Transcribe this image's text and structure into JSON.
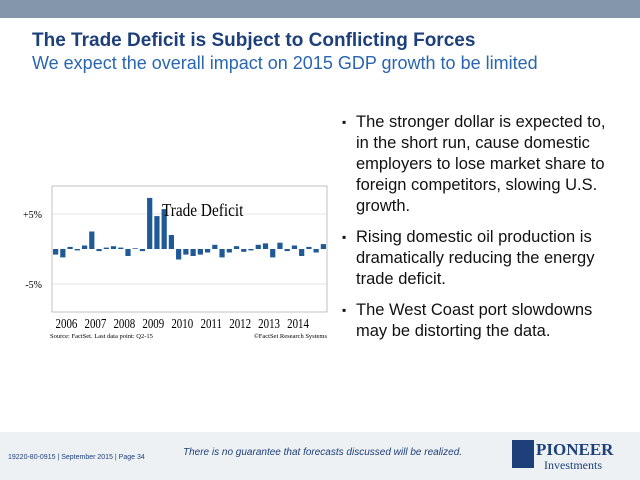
{
  "header": {
    "title": "The Trade Deficit is Subject to Conflicting Forces",
    "subtitle": "We expect the overall impact on 2015 GDP growth to be limited"
  },
  "chart_data": {
    "type": "bar",
    "annotation": "Trade Deficit",
    "color": "#1f5a96",
    "categories": [
      null,
      null,
      null,
      null,
      null,
      null,
      null,
      null,
      null,
      null,
      null,
      null,
      null,
      null,
      null,
      null,
      null,
      null,
      null,
      null,
      null,
      null,
      null,
      null,
      null,
      null,
      null,
      null,
      null,
      null,
      null,
      null,
      null,
      null,
      null,
      null,
      null,
      null
    ],
    "values": [
      -0.8,
      -1.2,
      0.3,
      -0.2,
      0.5,
      2.5,
      -0.3,
      0.2,
      0.4,
      0.2,
      -1.0,
      0.1,
      -0.3,
      7.3,
      4.7,
      5.7,
      2.0,
      -1.5,
      -0.8,
      -1.0,
      -0.8,
      -0.5,
      0.6,
      -1.2,
      -0.5,
      0.4,
      -0.4,
      -0.2,
      0.6,
      0.8,
      -1.2,
      0.9,
      -0.3,
      0.5,
      -1.0,
      0.3,
      -0.5,
      0.7
    ],
    "year_labels": [
      "2006",
      "2007",
      "2008",
      "2009",
      "2010",
      "2011",
      "2012",
      "2013",
      "2014"
    ],
    "ylim": [
      -9,
      9
    ],
    "yticks": [
      {
        "value": 5,
        "label": "+5%"
      },
      {
        "value": -5,
        "label": "-5%"
      }
    ],
    "grid": true,
    "source": "Source: FactSet. Last data point: Q2-15",
    "credit": "©FactSet Research Systems"
  },
  "bullets": [
    "The stronger dollar is expected to, in the short run, cause domestic employers to lose market share to foreign competitors, slowing U.S. growth.",
    "Rising domestic oil production is dramatically reducing the energy trade deficit.",
    "The West Coast port slowdowns may be distorting the data."
  ],
  "footer": {
    "disclaimer": "There is no guarantee that forecasts discussed will be realized.",
    "code": "19220-80-0915 | September 2015 | Page 34",
    "logo_top": "PIONEER",
    "logo_bottom": "Investments"
  }
}
